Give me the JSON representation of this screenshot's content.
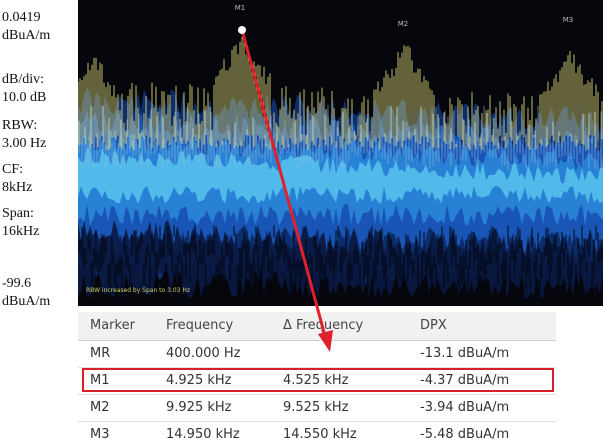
{
  "scale": {
    "top": {
      "value": "0.0419",
      "unit": "dBuA/m"
    },
    "settings": [
      {
        "label": "dB/div:",
        "value": "10.0 dB"
      },
      {
        "label": "RBW:",
        "value": "3.00 Hz"
      },
      {
        "label": "CF:",
        "value": "8kHz"
      },
      {
        "label": "Span:",
        "value": "16kHz"
      }
    ],
    "bottom": {
      "value": "-99.6",
      "unit": "dBuA/m"
    }
  },
  "display": {
    "markers": [
      "M1",
      "M2",
      "M3"
    ],
    "status": "RBW increased by Span to 3.03 Hz"
  },
  "table": {
    "header": [
      "Marker",
      "Frequency",
      "Δ Frequency",
      "DPX"
    ],
    "rows": [
      {
        "marker": "MR",
        "frequency": "400.000 Hz",
        "dpx": "-13.1 dBuA/m"
      },
      {
        "marker": "M1",
        "frequency": "4.925 kHz",
        "delta_frequency": "4.525 kHz",
        "dpx": "-4.37 dBuA/m"
      },
      {
        "marker": "M2",
        "frequency": "9.925 kHz",
        "delta_frequency": "9.525 kHz",
        "dpx": "-3.94 dBuA/m"
      },
      {
        "marker": "M3",
        "frequency": "14.950 kHz",
        "delta_frequency": "14.550 kHz",
        "dpx": "-5.48 dBuA/m"
      }
    ]
  }
}
